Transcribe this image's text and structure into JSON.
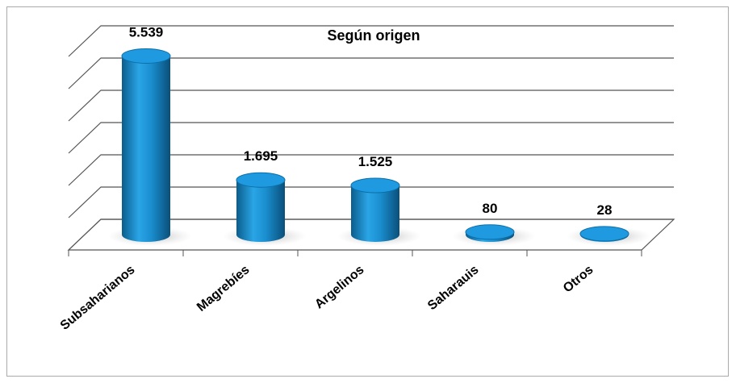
{
  "chart_data": {
    "type": "bar",
    "title": "Según origen",
    "categories": [
      "Subsaharianos",
      "Magrebíes",
      "Argelinos",
      "Saharauis",
      "Otros"
    ],
    "values": [
      5539,
      1695,
      1525,
      80,
      28
    ],
    "value_labels": [
      "5.539",
      "1.695",
      "1.525",
      "80",
      "28"
    ],
    "color": "#1a8fd0",
    "ylim": [
      0,
      6000
    ],
    "yticks": [
      0,
      1000,
      2000,
      3000,
      4000,
      5000,
      6000
    ],
    "grid": true
  }
}
